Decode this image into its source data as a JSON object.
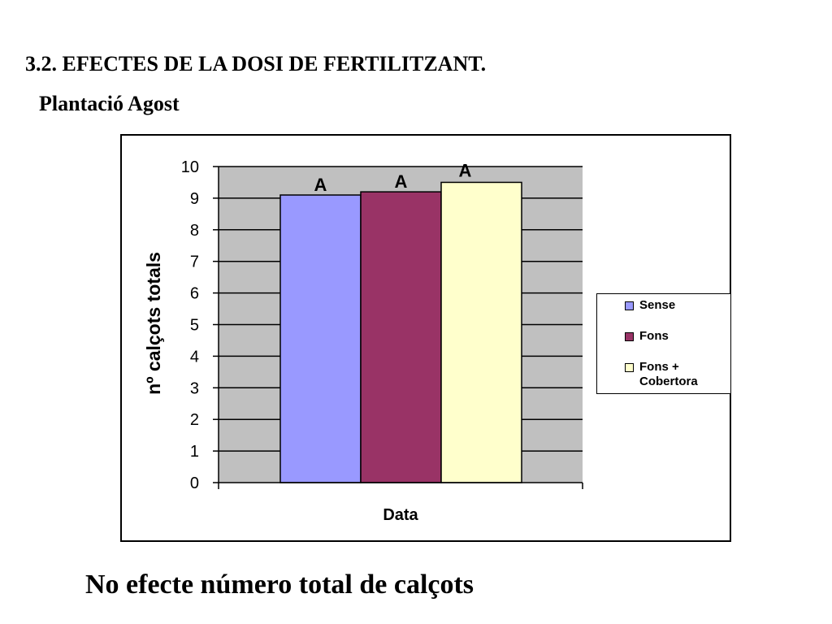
{
  "slide": {
    "heading": "3.2. EFECTES DE LA DOSI DE FERTILITZANT.",
    "subheading": "Plantació Agost",
    "conclusion": "No efecte número total de calçots"
  },
  "colors": {
    "plot_background": "#c0c0c0",
    "Sense": "#9999ff",
    "Fons": "#993366",
    "Fons + Cobertora": "#ffffcc"
  },
  "chart_data": {
    "type": "bar",
    "categories": [
      "Data"
    ],
    "series": [
      {
        "name": "Sense",
        "values": [
          9.1
        ],
        "label": "A"
      },
      {
        "name": "Fons",
        "values": [
          9.2
        ],
        "label": "A"
      },
      {
        "name": "Fons + Cobertora",
        "values": [
          9.5
        ],
        "label": "A"
      }
    ],
    "xlabel": "Data",
    "ylabel": "nº calçots totals",
    "ylim": [
      0,
      10
    ],
    "yticks": [
      "0",
      "1",
      "2",
      "3",
      "4",
      "5",
      "6",
      "7",
      "8",
      "9",
      "10"
    ],
    "grid": true,
    "legend": "right"
  }
}
